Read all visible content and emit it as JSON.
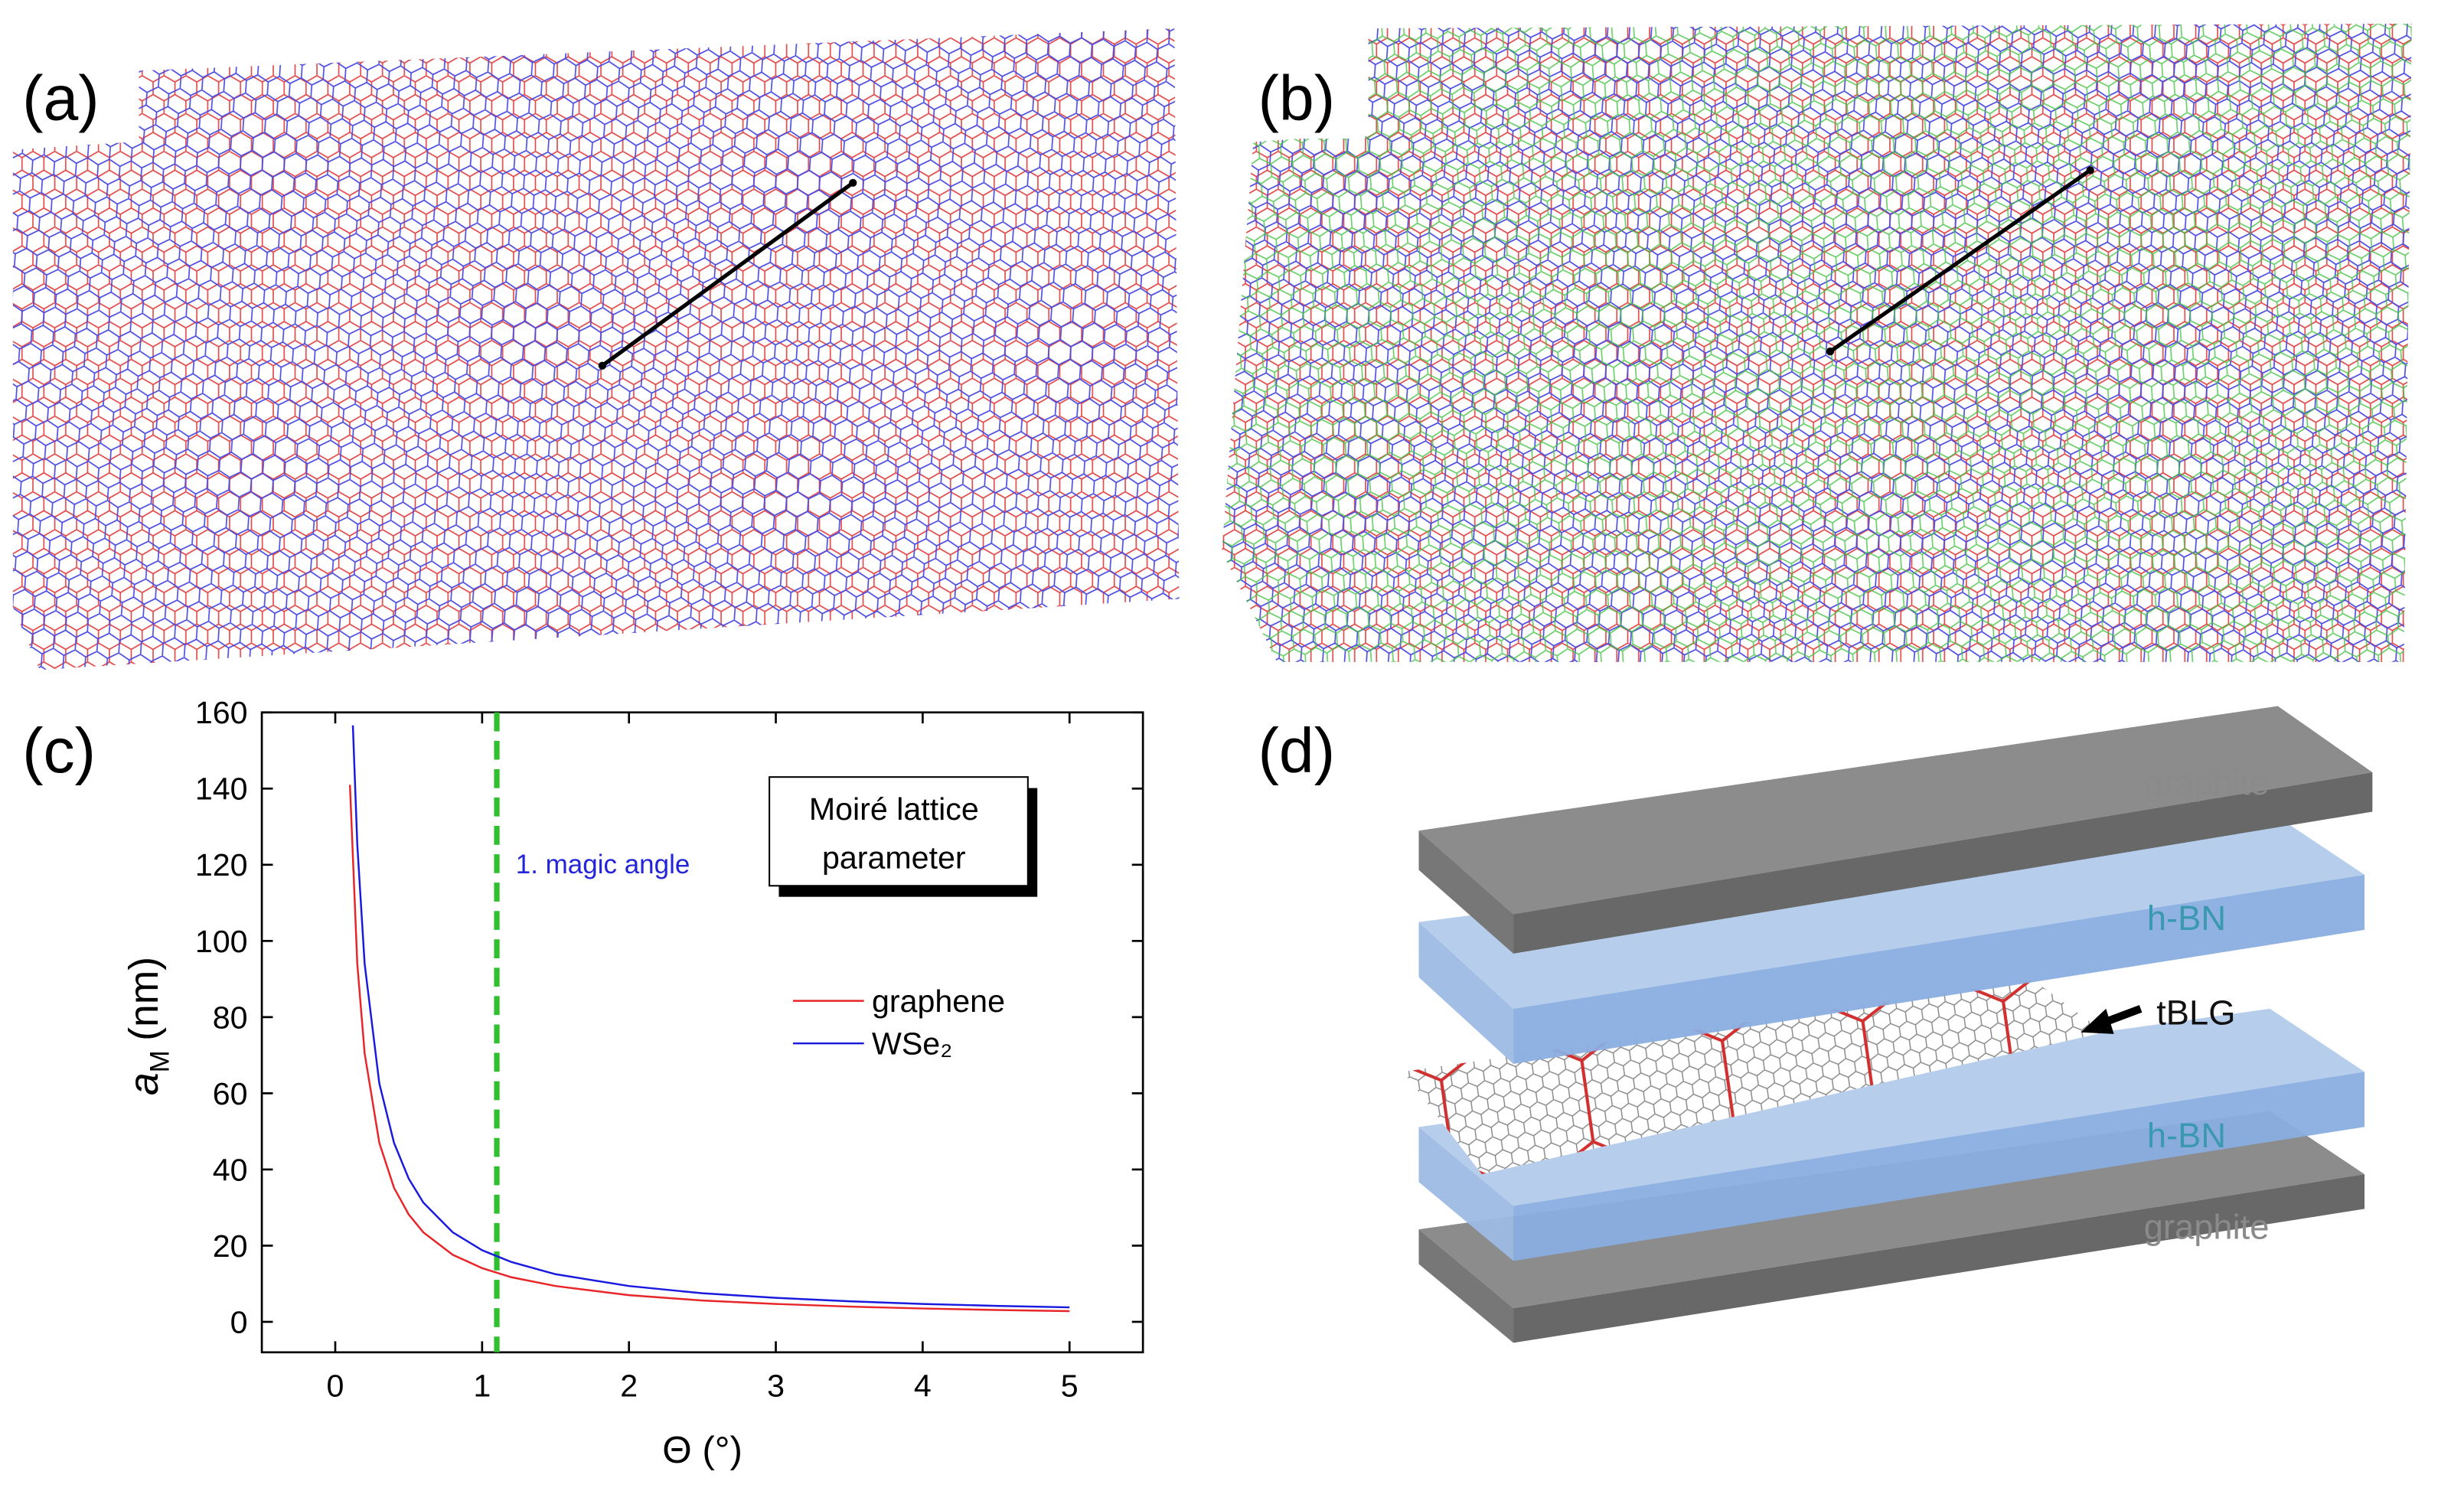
{
  "panels": [
    {
      "label": "(a)"
    },
    {
      "label": "(b)"
    },
    {
      "label": "(c)"
    },
    {
      "label": "(d)"
    }
  ],
  "chart_data": {
    "type": "line",
    "x_label": "Θ (°)",
    "y_label": {
      "text": "a",
      "sub": "M",
      "unit": "(nm)"
    },
    "xlim": [
      -0.5,
      5.5
    ],
    "xticks": [
      0,
      1,
      2,
      3,
      4,
      5
    ],
    "ylim": [
      -8,
      160
    ],
    "yticks": [
      0,
      20,
      40,
      60,
      80,
      100,
      120,
      140,
      160
    ],
    "annotations": [
      {
        "text": "1. magic angle",
        "x": 1.1,
        "color": "#2424d8",
        "line_color": "#2fbf2f"
      }
    ],
    "legend_title": [
      "Moiré lattice",
      "parameter"
    ],
    "series": [
      {
        "name": "graphene",
        "color": "#e8262a",
        "x": [
          0.1,
          0.15,
          0.2,
          0.3,
          0.4,
          0.5,
          0.6,
          0.8,
          1.0,
          1.2,
          1.5,
          2,
          2.5,
          3,
          3.5,
          4,
          4.5,
          5
        ],
        "values": [
          141.0,
          94.0,
          70.5,
          47.0,
          35.2,
          28.2,
          23.5,
          17.6,
          14.1,
          11.7,
          9.4,
          7.0,
          5.6,
          4.7,
          4.0,
          3.5,
          3.1,
          2.8
        ]
      },
      {
        "name": "WSe₂",
        "color": "#1a1adf",
        "x": [
          0.12,
          0.15,
          0.2,
          0.3,
          0.4,
          0.5,
          0.6,
          0.8,
          1.0,
          1.2,
          1.5,
          2,
          2.5,
          3,
          3.5,
          4,
          4.5,
          5
        ],
        "values": [
          156.6,
          125.3,
          94.0,
          62.6,
          47.0,
          37.6,
          31.3,
          23.5,
          18.8,
          15.7,
          12.5,
          9.4,
          7.5,
          6.3,
          5.4,
          4.7,
          4.2,
          3.8
        ]
      }
    ]
  },
  "diagram": {
    "layers": [
      "graphite",
      "h-BN",
      "tBLG",
      "h-BN",
      "graphite"
    ]
  }
}
